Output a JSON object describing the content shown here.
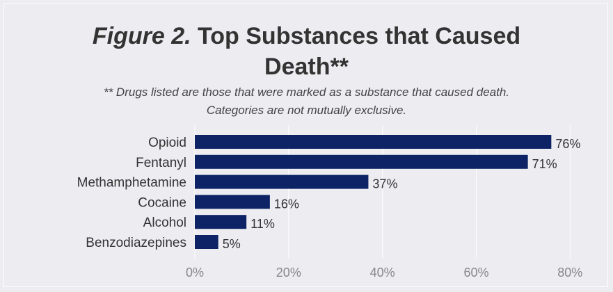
{
  "figure_label": "Figure 2.",
  "title_line1": "Top Substances that Caused",
  "title_line2": "Death**",
  "subtitle_line1": "** Drugs listed are those that were marked as a substance that caused death.",
  "subtitle_line2": "Categories are not mutually exclusive.",
  "chart_data": {
    "type": "bar",
    "orientation": "horizontal",
    "categories": [
      "Opioid",
      "Fentanyl",
      "Methamphetamine",
      "Cocaine",
      "Alcohol",
      "Benzodiazepines"
    ],
    "values": [
      76,
      71,
      37,
      16,
      11,
      5
    ],
    "value_labels": [
      "76%",
      "71%",
      "37%",
      "16%",
      "11%",
      "5%"
    ],
    "xlim": [
      0,
      85
    ],
    "xticks": [
      0,
      20,
      40,
      60,
      80
    ],
    "xtick_labels": [
      "0%",
      "20%",
      "40%",
      "60%",
      "80%"
    ],
    "bar_color": "#0d2366",
    "grid": true,
    "xlabel": "",
    "ylabel": ""
  }
}
